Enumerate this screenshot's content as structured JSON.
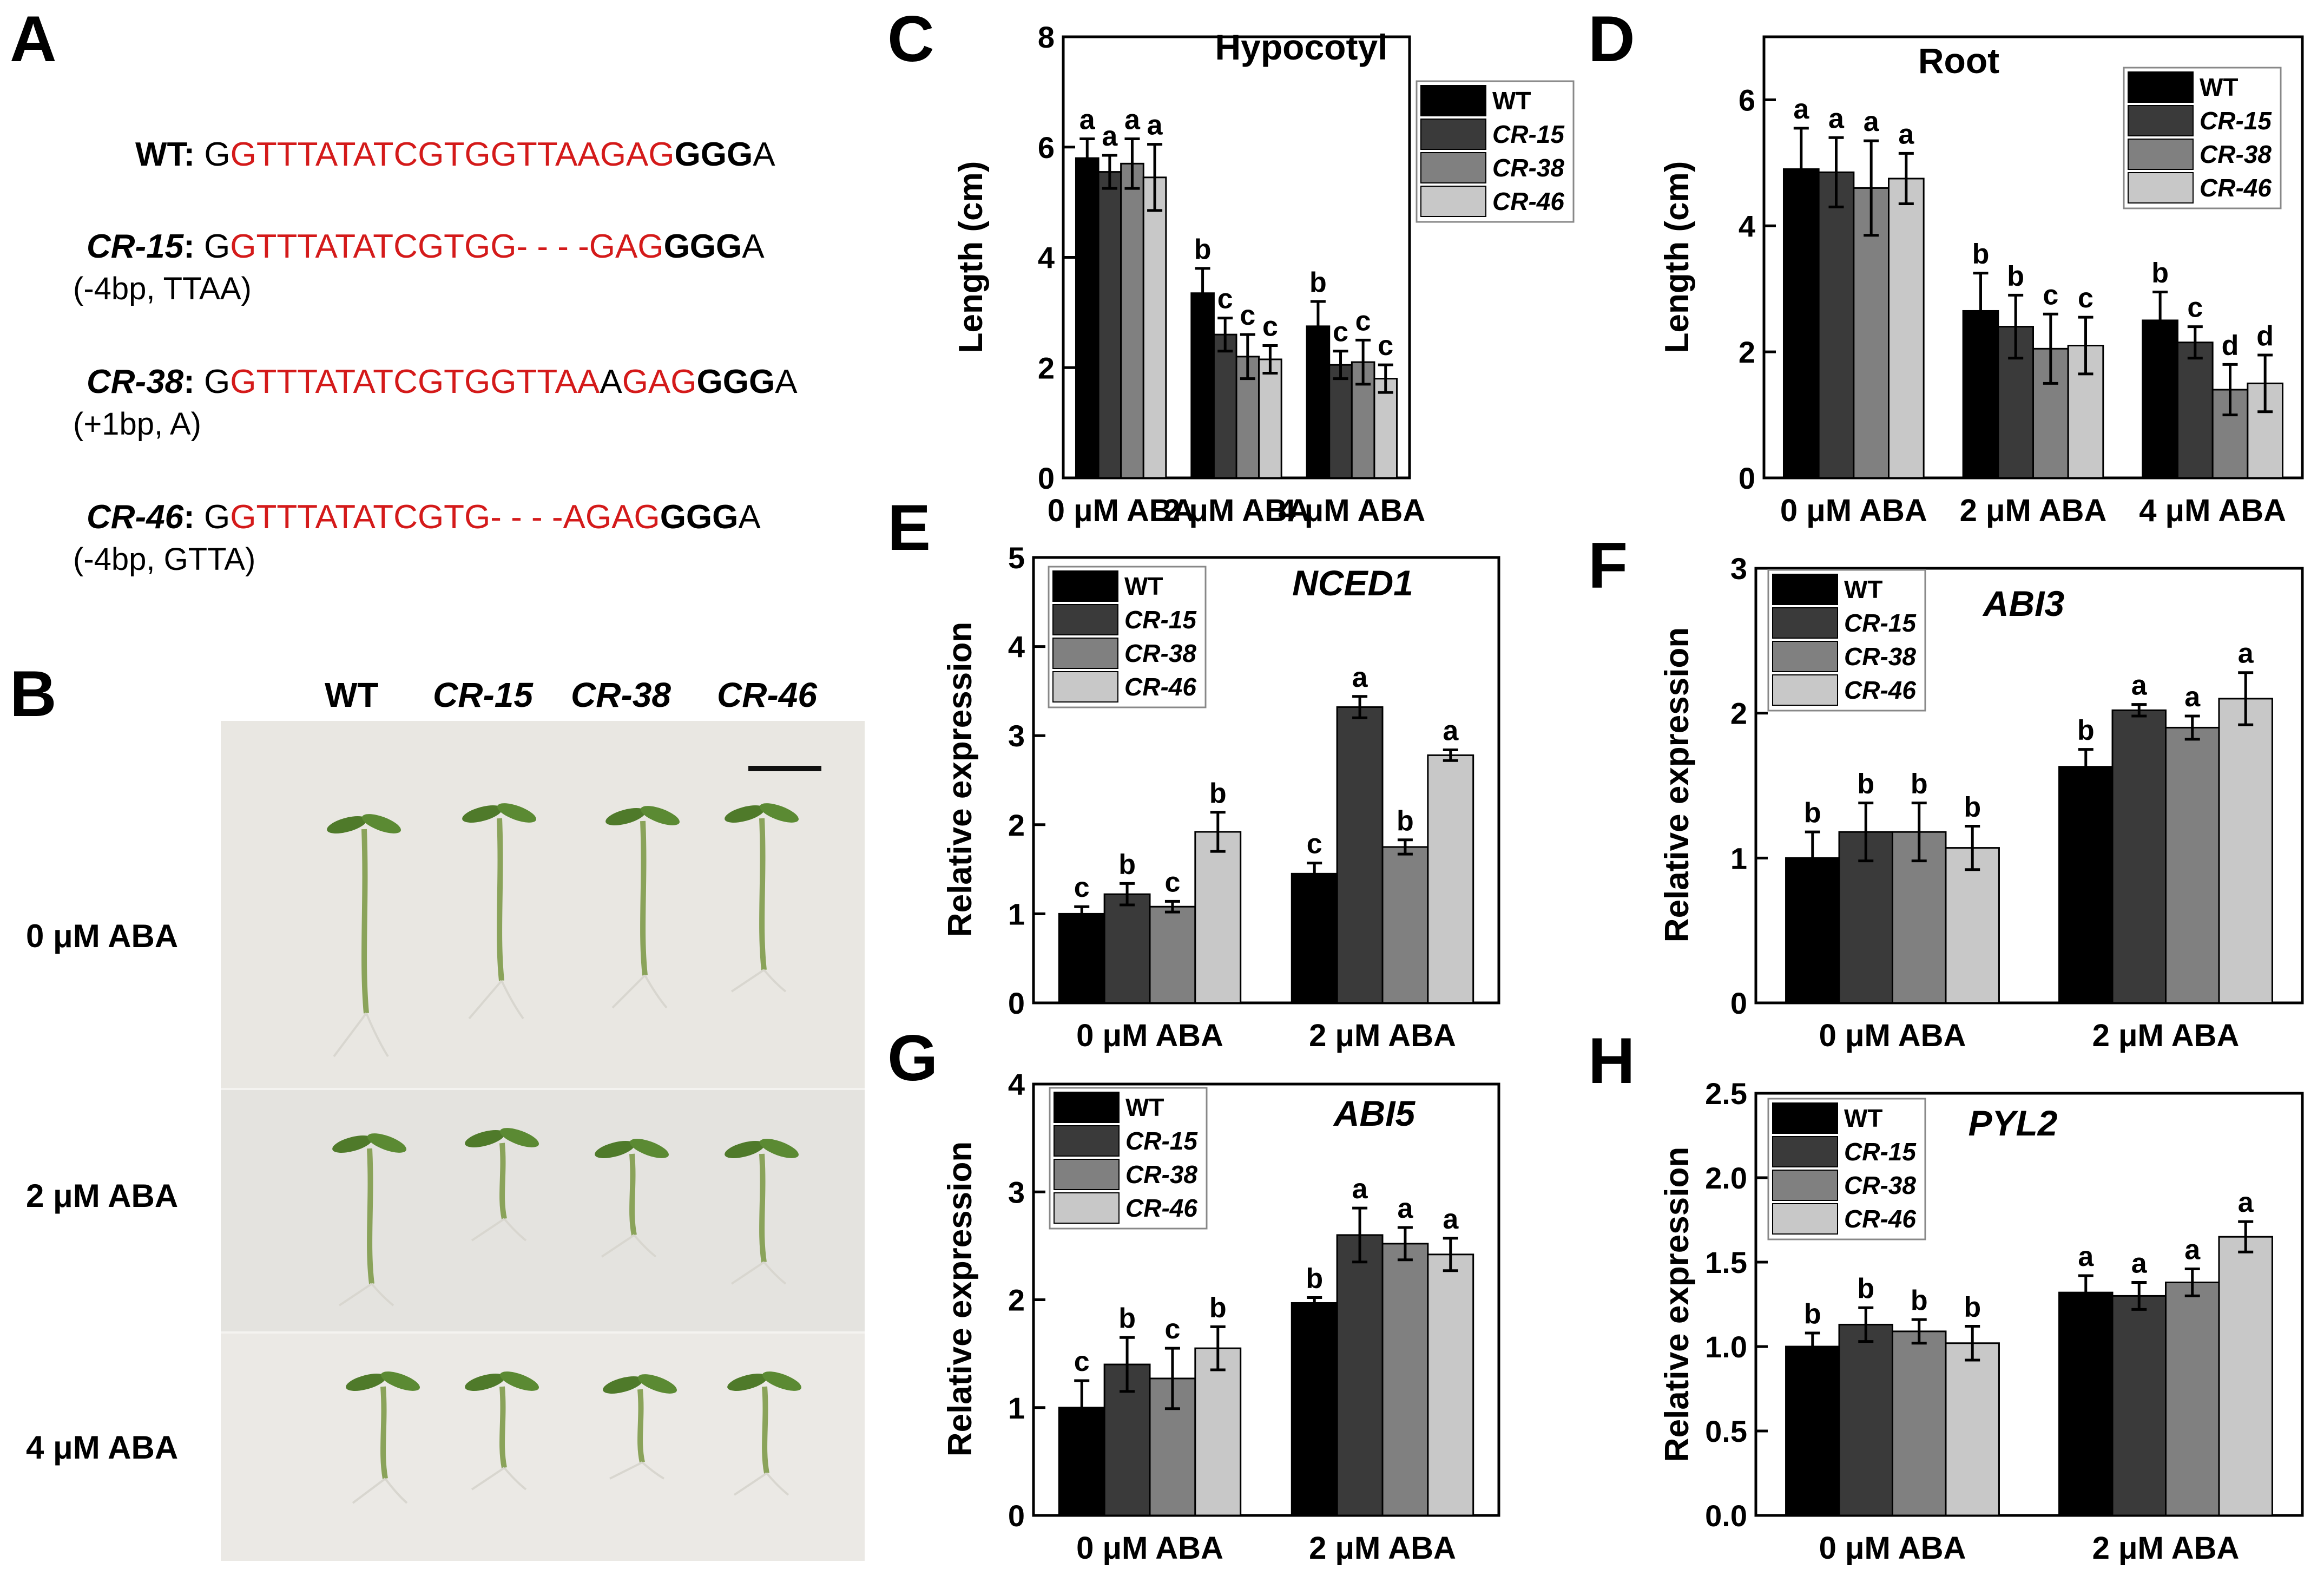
{
  "panels": {
    "A": "A",
    "B": "B",
    "C": "C",
    "D": "D",
    "E": "E",
    "F": "F",
    "G": "G",
    "H": "H"
  },
  "sequences": [
    {
      "name": "WT",
      "sep": ":",
      "parts": [
        {
          "t": "G",
          "c": "k"
        },
        {
          "t": "GTTTATATCGTGGTTAAGAG",
          "c": "r"
        },
        {
          "t": "GGG",
          "c": "b"
        },
        {
          "t": "A",
          "c": "k"
        }
      ],
      "note": ""
    },
    {
      "name": "CR-15",
      "sep": ":",
      "parts": [
        {
          "t": "G",
          "c": "k"
        },
        {
          "t": "GTTTATATCGTGG- - - -GAG",
          "c": "r"
        },
        {
          "t": "GGG",
          "c": "b"
        },
        {
          "t": "A",
          "c": "k"
        }
      ],
      "note": "(-4bp, TTAA)"
    },
    {
      "name": "CR-38",
      "sep": ":",
      "parts": [
        {
          "t": "G",
          "c": "k"
        },
        {
          "t": "GTTTATATCGTGGTTAA",
          "c": "r"
        },
        {
          "t": "A",
          "c": "k"
        },
        {
          "t": "GAG",
          "c": "r"
        },
        {
          "t": "GGG",
          "c": "b"
        },
        {
          "t": "A",
          "c": "k"
        }
      ],
      "note": "(+1bp, A)"
    },
    {
      "name": "CR-46",
      "sep": ":",
      "parts": [
        {
          "t": "G",
          "c": "k"
        },
        {
          "t": "GTTTATATCGTG- - - -AGAG",
          "c": "r"
        },
        {
          "t": "GGG",
          "c": "b"
        },
        {
          "t": "A",
          "c": "k"
        }
      ],
      "note": "(-4bp, GTTA)"
    }
  ],
  "photo": {
    "genotypes": [
      "WT",
      "CR-15",
      "CR-38",
      "CR-46"
    ],
    "rows": [
      "0 μM ABA",
      "2 μM ABA",
      "4 μM ABA"
    ]
  },
  "colors": {
    "WT": "#000000",
    "CR-15": "#3a3a3a",
    "CR-38": "#808080",
    "CR-46": "#c8c8c8",
    "sequence_red": "#d41a1a"
  },
  "chart_data": [
    {
      "panel": "C",
      "type": "bar",
      "title": "Hypocotyl",
      "title_italic": false,
      "xlabel": "",
      "ylabel": "Length (cm)",
      "ylim": [
        0,
        8
      ],
      "yticks": [
        0,
        2,
        4,
        6,
        8
      ],
      "categories": [
        "0 μM ABA",
        "2 μM ABA",
        "4 μM ABA"
      ],
      "series": [
        {
          "name": "WT",
          "values": [
            5.8,
            3.35,
            2.75
          ],
          "errors": [
            0.35,
            0.45,
            0.45
          ],
          "letters": [
            "a",
            "b",
            "b"
          ]
        },
        {
          "name": "CR-15",
          "values": [
            5.55,
            2.6,
            2.05
          ],
          "errors": [
            0.3,
            0.3,
            0.25
          ],
          "letters": [
            "a",
            "c",
            "c"
          ]
        },
        {
          "name": "CR-38",
          "values": [
            5.7,
            2.2,
            2.1
          ],
          "errors": [
            0.45,
            0.4,
            0.4
          ],
          "letters": [
            "a",
            "c",
            "c"
          ]
        },
        {
          "name": "CR-46",
          "values": [
            5.45,
            2.15,
            1.8
          ],
          "errors": [
            0.6,
            0.25,
            0.25
          ],
          "letters": [
            "a",
            "c",
            "c"
          ]
        }
      ]
    },
    {
      "panel": "D",
      "type": "bar",
      "title": "Root",
      "title_italic": false,
      "xlabel": "",
      "ylabel": "Length (cm)",
      "ylim": [
        0,
        7
      ],
      "yticks": [
        0,
        2,
        4,
        6
      ],
      "categories": [
        "0 μM ABA",
        "2 μM ABA",
        "4 μM ABA"
      ],
      "series": [
        {
          "name": "WT",
          "values": [
            4.9,
            2.65,
            2.5
          ],
          "errors": [
            0.65,
            0.6,
            0.45
          ],
          "letters": [
            "a",
            "b",
            "b"
          ]
        },
        {
          "name": "CR-15",
          "values": [
            4.85,
            2.4,
            2.15
          ],
          "errors": [
            0.55,
            0.5,
            0.25
          ],
          "letters": [
            "a",
            "b",
            "c"
          ]
        },
        {
          "name": "CR-38",
          "values": [
            4.6,
            2.05,
            1.4
          ],
          "errors": [
            0.75,
            0.55,
            0.4
          ],
          "letters": [
            "a",
            "c",
            "d"
          ]
        },
        {
          "name": "CR-46",
          "values": [
            4.75,
            2.1,
            1.5
          ],
          "errors": [
            0.4,
            0.45,
            0.45
          ],
          "letters": [
            "a",
            "c",
            "d"
          ]
        }
      ]
    },
    {
      "panel": "E",
      "type": "bar",
      "title": "NCED1",
      "title_italic": true,
      "xlabel": "",
      "ylabel": "Relative expression",
      "ylim": [
        0,
        5
      ],
      "yticks": [
        0,
        1,
        2,
        3,
        4,
        5
      ],
      "categories": [
        "0 μM ABA",
        "2 μM ABA"
      ],
      "series": [
        {
          "name": "WT",
          "values": [
            1.0,
            1.45
          ],
          "errors": [
            0.08,
            0.12
          ],
          "letters": [
            "c",
            "c"
          ]
        },
        {
          "name": "CR-15",
          "values": [
            1.22,
            3.32
          ],
          "errors": [
            0.12,
            0.12
          ],
          "letters": [
            "b",
            "a"
          ]
        },
        {
          "name": "CR-38",
          "values": [
            1.08,
            1.75
          ],
          "errors": [
            0.06,
            0.08
          ],
          "letters": [
            "c",
            "b"
          ]
        },
        {
          "name": "CR-46",
          "values": [
            1.92,
            2.78
          ],
          "errors": [
            0.22,
            0.06
          ],
          "letters": [
            "b",
            "a"
          ]
        }
      ]
    },
    {
      "panel": "F",
      "type": "bar",
      "title": "ABI3",
      "title_italic": true,
      "xlabel": "",
      "ylabel": "Relative expression",
      "ylim": [
        0,
        3
      ],
      "yticks": [
        0,
        1,
        2,
        3
      ],
      "categories": [
        "0 μM ABA",
        "2 μM ABA"
      ],
      "series": [
        {
          "name": "WT",
          "values": [
            1.0,
            1.63
          ],
          "errors": [
            0.18,
            0.12
          ],
          "letters": [
            "b",
            "b"
          ]
        },
        {
          "name": "CR-15",
          "values": [
            1.18,
            2.02
          ],
          "errors": [
            0.2,
            0.04
          ],
          "letters": [
            "b",
            "a"
          ]
        },
        {
          "name": "CR-38",
          "values": [
            1.18,
            1.9
          ],
          "errors": [
            0.2,
            0.08
          ],
          "letters": [
            "b",
            "a"
          ]
        },
        {
          "name": "CR-46",
          "values": [
            1.07,
            2.1
          ],
          "errors": [
            0.15,
            0.18
          ],
          "letters": [
            "b",
            "a"
          ]
        }
      ]
    },
    {
      "panel": "G",
      "type": "bar",
      "title": "ABI5",
      "title_italic": true,
      "xlabel": "",
      "ylabel": "Relative expression",
      "ylim": [
        0,
        4
      ],
      "yticks": [
        0,
        1,
        2,
        3,
        4
      ],
      "categories": [
        "0 μM ABA",
        "2 μM ABA"
      ],
      "series": [
        {
          "name": "WT",
          "values": [
            1.0,
            1.97
          ],
          "errors": [
            0.25,
            0.05
          ],
          "letters": [
            "c",
            "b"
          ]
        },
        {
          "name": "CR-15",
          "values": [
            1.4,
            2.6
          ],
          "errors": [
            0.25,
            0.25
          ],
          "letters": [
            "b",
            "a"
          ]
        },
        {
          "name": "CR-38",
          "values": [
            1.27,
            2.52
          ],
          "errors": [
            0.28,
            0.15
          ],
          "letters": [
            "c",
            "a"
          ]
        },
        {
          "name": "CR-46",
          "values": [
            1.55,
            2.42
          ],
          "errors": [
            0.2,
            0.15
          ],
          "letters": [
            "b",
            "a"
          ]
        }
      ]
    },
    {
      "panel": "H",
      "type": "bar",
      "title": "PYL2",
      "title_italic": true,
      "xlabel": "",
      "ylabel": "Relative expression",
      "ylim": [
        0,
        2.5
      ],
      "yticks": [
        0.0,
        0.5,
        1.0,
        1.5,
        2.0,
        2.5
      ],
      "categories": [
        "0 μM ABA",
        "2 μM ABA"
      ],
      "series": [
        {
          "name": "WT",
          "values": [
            1.0,
            1.32
          ],
          "errors": [
            0.08,
            0.1
          ],
          "letters": [
            "b",
            "a"
          ]
        },
        {
          "name": "CR-15",
          "values": [
            1.13,
            1.3
          ],
          "errors": [
            0.1,
            0.08
          ],
          "letters": [
            "b",
            "a"
          ]
        },
        {
          "name": "CR-38",
          "values": [
            1.09,
            1.38
          ],
          "errors": [
            0.07,
            0.08
          ],
          "letters": [
            "b",
            "a"
          ]
        },
        {
          "name": "CR-46",
          "values": [
            1.02,
            1.65
          ],
          "errors": [
            0.1,
            0.09
          ],
          "letters": [
            "b",
            "a"
          ]
        }
      ]
    }
  ]
}
